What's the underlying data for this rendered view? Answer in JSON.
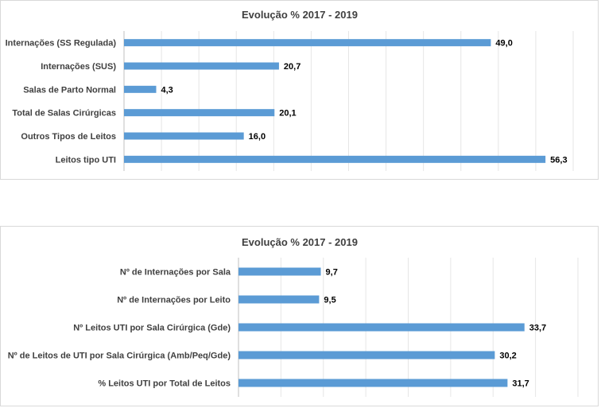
{
  "chart_data": [
    {
      "type": "bar",
      "orientation": "horizontal",
      "title": "Evolução % 2017 - 2019",
      "categories": [
        "Internações (SS Regulada)",
        "Internações (SUS)",
        "Salas de Parto Normal",
        "Total de Salas Cirúrgicas",
        "Outros Tipos de Leitos",
        "Leitos tipo UTI"
      ],
      "values": [
        49.0,
        20.7,
        4.3,
        20.1,
        16.0,
        56.3
      ],
      "value_labels": [
        "49,0",
        "20,7",
        "4,3",
        "20,1",
        "16,0",
        "56,3"
      ],
      "xlim": [
        0,
        60
      ],
      "grid": true,
      "bar_color": "#5b9bd5"
    },
    {
      "type": "bar",
      "orientation": "horizontal",
      "title": "Evolução % 2017 - 2019",
      "categories": [
        "Nº de Internações por Sala",
        "Nº de Internações por Leito",
        "Nº Leitos UTI por Sala Cirúrgica (Gde)",
        "Nº de Leitos de UTI por Sala Cirúrgica (Amb/Peq/Gde)",
        "% Leitos UTI por Total de Leitos"
      ],
      "values": [
        9.7,
        9.5,
        33.7,
        30.2,
        31.7
      ],
      "value_labels": [
        "9,7",
        "9,5",
        "33,7",
        "30,2",
        "31,7"
      ],
      "xlim": [
        0,
        40
      ],
      "grid": true,
      "bar_color": "#5b9bd5"
    }
  ]
}
